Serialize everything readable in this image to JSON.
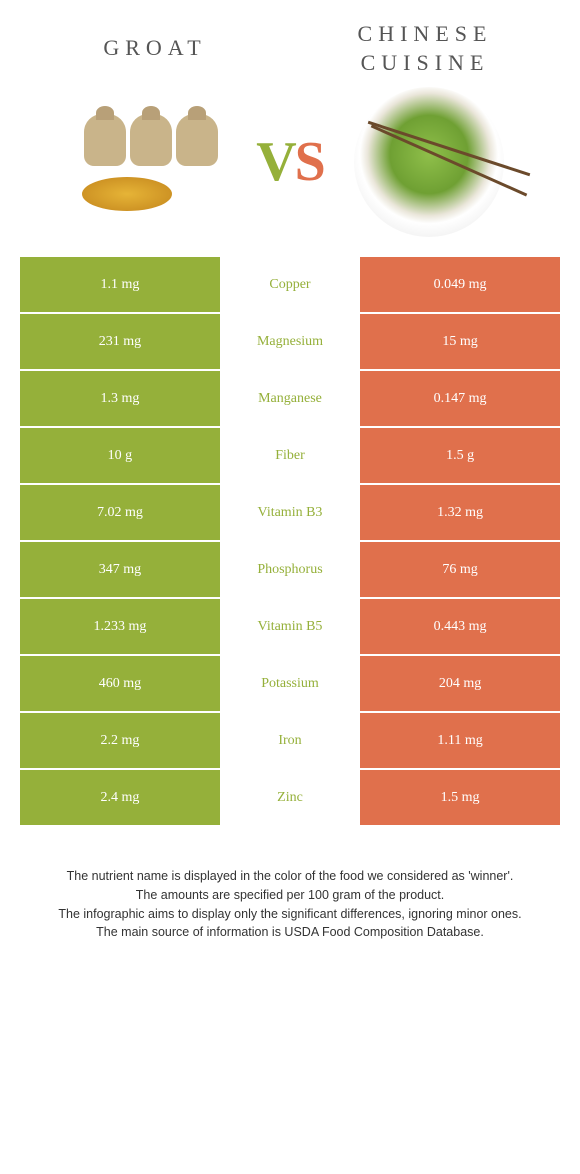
{
  "header": {
    "left_title": "GROAT",
    "right_title": "CHINESE CUISINE",
    "vs_v": "V",
    "vs_s": "S"
  },
  "colors": {
    "left_bar": "#95b03a",
    "right_bar": "#e0704c",
    "mid_text_winner_left": "#95b03a",
    "mid_text_winner_right": "#e0704c"
  },
  "rows": [
    {
      "left": "1.1 mg",
      "label": "Copper",
      "right": "0.049 mg",
      "winner": "left"
    },
    {
      "left": "231 mg",
      "label": "Magnesium",
      "right": "15 mg",
      "winner": "left"
    },
    {
      "left": "1.3 mg",
      "label": "Manganese",
      "right": "0.147 mg",
      "winner": "left"
    },
    {
      "left": "10 g",
      "label": "Fiber",
      "right": "1.5 g",
      "winner": "left"
    },
    {
      "left": "7.02 mg",
      "label": "Vitamin B3",
      "right": "1.32 mg",
      "winner": "left"
    },
    {
      "left": "347 mg",
      "label": "Phosphorus",
      "right": "76 mg",
      "winner": "left"
    },
    {
      "left": "1.233 mg",
      "label": "Vitamin B5",
      "right": "0.443 mg",
      "winner": "left"
    },
    {
      "left": "460 mg",
      "label": "Potassium",
      "right": "204 mg",
      "winner": "left"
    },
    {
      "left": "2.2 mg",
      "label": "Iron",
      "right": "1.11 mg",
      "winner": "left"
    },
    {
      "left": "2.4 mg",
      "label": "Zinc",
      "right": "1.5 mg",
      "winner": "left"
    }
  ],
  "footnote": {
    "line1": "The nutrient name is displayed in the color of the food we considered as 'winner'.",
    "line2": "The amounts are specified per 100 gram of the product.",
    "line3": "The infographic aims to display only the significant differences, ignoring minor ones.",
    "line4": "The main source of information is USDA Food Composition Database."
  }
}
